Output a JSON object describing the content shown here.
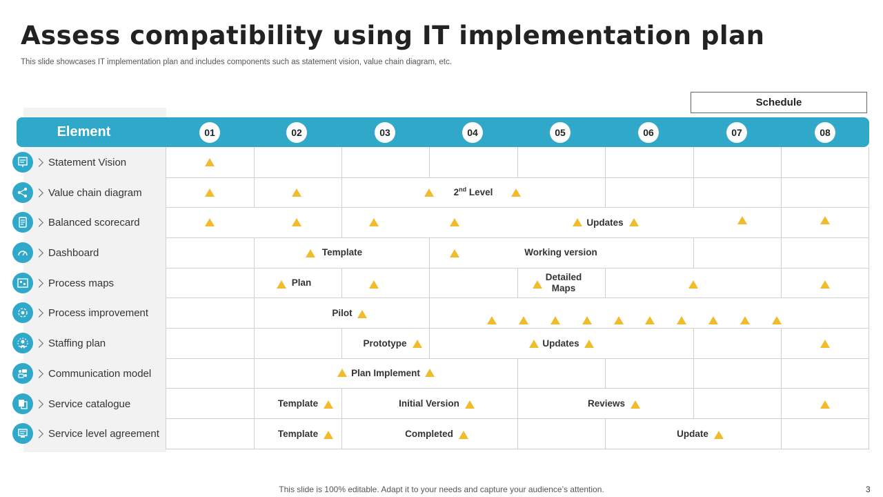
{
  "title": "Assess compatibility using IT implementation plan",
  "subtitle": "This slide showcases IT implementation plan and includes components such as statement vision, value chain diagram, etc.",
  "schedule_label": "Schedule",
  "element_label": "Element",
  "columns": [
    "01",
    "02",
    "03",
    "04",
    "05",
    "06",
    "07",
    "08"
  ],
  "rows": [
    {
      "label": "Statement Vision",
      "icon": "vision-icon"
    },
    {
      "label": "Value chain diagram",
      "icon": "value-chain-icon"
    },
    {
      "label": "Balanced scorecard",
      "icon": "scorecard-icon"
    },
    {
      "label": "Dashboard",
      "icon": "dashboard-gauge-icon"
    },
    {
      "label": "Process maps",
      "icon": "process-map-icon"
    },
    {
      "label": "Process improvement",
      "icon": "gear-cycle-icon"
    },
    {
      "label": "Staffing plan",
      "icon": "staff-gear-icon"
    },
    {
      "label": "Communication model",
      "icon": "communication-icon"
    },
    {
      "label": "Service catalogue",
      "icon": "catalogue-icon"
    },
    {
      "label": "Service level agreement",
      "icon": "agreement-icon"
    }
  ],
  "cell_texts": {
    "second_level_num": "2",
    "second_level_sup": "nd",
    "second_level_word": " Level",
    "bsc_updates": "Updates",
    "dash_template": "Template",
    "dash_working": "Working version",
    "pm_plan": "Plan",
    "pm_detailed": "Detailed",
    "pm_maps": "Maps",
    "pi_pilot": "Pilot",
    "sp_prototype": "Prototype",
    "sp_updates": "Updates",
    "cm_plan": "Plan Implement",
    "sc_template": "Template",
    "sc_initial": "Initial Version",
    "sc_reviews": "Reviews",
    "sla_template": "Template",
    "sla_completed": "Completed",
    "sla_update": "Update"
  },
  "colors": {
    "accent": "#2fa8c9",
    "milestone": "#f0bc2c",
    "grid": "#cfcfcf"
  },
  "footer": "This slide is 100% editable. Adapt it to your needs and capture your audience’s attention.",
  "page_number": "3"
}
